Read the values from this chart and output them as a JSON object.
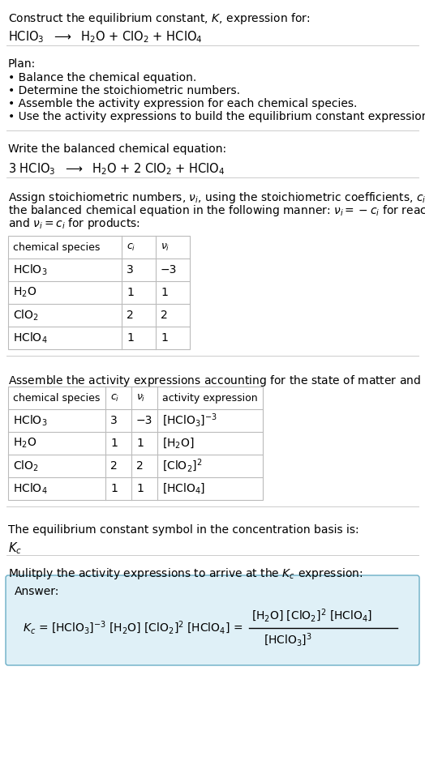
{
  "title_line1": "Construct the equilibrium constant, $K$, expression for:",
  "title_line2": "HClO$_3$  $\\longrightarrow$  H$_2$O + ClO$_2$ + HClO$_4$",
  "plan_header": "Plan:",
  "plan_bullets": [
    "• Balance the chemical equation.",
    "• Determine the stoichiometric numbers.",
    "• Assemble the activity expression for each chemical species.",
    "• Use the activity expressions to build the equilibrium constant expression."
  ],
  "balanced_header": "Write the balanced chemical equation:",
  "balanced_eq": "3 HClO$_3$  $\\longrightarrow$  H$_2$O + 2 ClO$_2$ + HClO$_4$",
  "stoich_intro_lines": [
    "Assign stoichiometric numbers, $\\nu_i$, using the stoichiometric coefficients, $c_i$, from",
    "the balanced chemical equation in the following manner: $\\nu_i = -c_i$ for reactants",
    "and $\\nu_i = c_i$ for products:"
  ],
  "table1_headers": [
    "chemical species",
    "$c_i$",
    "$\\nu_i$"
  ],
  "table1_data": [
    [
      "HClO$_3$",
      "3",
      "−3"
    ],
    [
      "H$_2$O",
      "1",
      "1"
    ],
    [
      "ClO$_2$",
      "2",
      "2"
    ],
    [
      "HClO$_4$",
      "1",
      "1"
    ]
  ],
  "assemble_intro": "Assemble the activity expressions accounting for the state of matter and $\\nu_i$:",
  "table2_headers": [
    "chemical species",
    "$c_i$",
    "$\\nu_i$",
    "activity expression"
  ],
  "table2_data": [
    [
      "HClO$_3$",
      "3",
      "−3",
      "[HClO$_3$]$^{-3}$"
    ],
    [
      "H$_2$O",
      "1",
      "1",
      "[H$_2$O]"
    ],
    [
      "ClO$_2$",
      "2",
      "2",
      "[ClO$_2$]$^2$"
    ],
    [
      "HClO$_4$",
      "1",
      "1",
      "[HClO$_4$]"
    ]
  ],
  "kc_text": "The equilibrium constant symbol in the concentration basis is:",
  "kc_symbol": "$K_c$",
  "multiply_text": "Mulitply the activity expressions to arrive at the $K_c$ expression:",
  "answer_label": "Answer:",
  "kc_eq_left": "$K_c$ = [HClO$_3$]$^{-3}$ [H$_2$O] [ClO$_2$]$^2$ [HClO$_4$] =",
  "kc_eq_num": "[H$_2$O] [ClO$_2$]$^2$ [HClO$_4$]",
  "kc_eq_den": "[HClO$_3$]$^3$",
  "bg_color": "#ffffff",
  "table_border_color": "#bbbbbb",
  "answer_bg_color": "#dff0f7",
  "answer_border_color": "#6aaec6",
  "text_color": "#000000",
  "fontsize": 10.0,
  "small_fontsize": 9.0,
  "line_color": "#cccccc"
}
